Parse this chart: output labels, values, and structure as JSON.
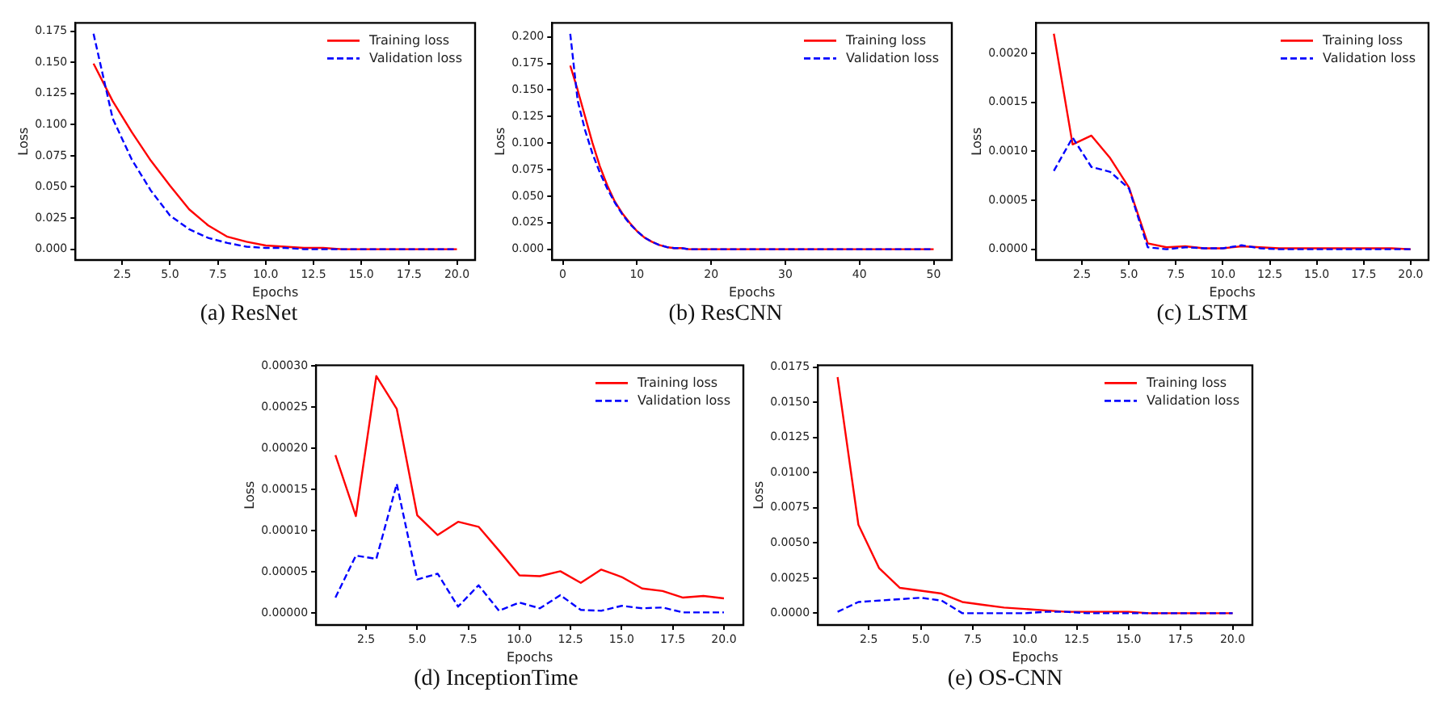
{
  "chart_data": [
    {
      "type": "line",
      "title": "(a) ResNet",
      "xlabel": "Epochs",
      "ylabel": "Loss",
      "x": [
        1,
        2,
        3,
        4,
        5,
        6,
        7,
        8,
        9,
        10,
        11,
        12,
        13,
        14,
        15,
        16,
        17,
        18,
        19,
        20
      ],
      "series": [
        {
          "name": "Training loss",
          "color": "#ff0000",
          "line_style": "solid",
          "values": [
            0.149,
            0.119,
            0.094,
            0.071,
            0.051,
            0.032,
            0.019,
            0.01,
            0.006,
            0.003,
            0.002,
            0.001,
            0.001,
            0,
            0,
            0,
            0,
            0,
            0,
            0
          ]
        },
        {
          "name": "Validation loss",
          "color": "#0000ff",
          "line_style": "dashed",
          "values": [
            0.173,
            0.105,
            0.072,
            0.047,
            0.027,
            0.016,
            0.009,
            0.005,
            0.002,
            0.001,
            0.001,
            0,
            0,
            0,
            0,
            0,
            0,
            0,
            0,
            0
          ]
        }
      ],
      "xlim": [
        0.05,
        20.95
      ],
      "xticks": [
        2.5,
        {
          "value": 5,
          "label": "5.0"
        },
        7.5,
        {
          "value": 10,
          "label": "10.0"
        },
        12.5,
        {
          "value": 15,
          "label": "15.0"
        },
        17.5,
        {
          "value": 20,
          "label": "20.0"
        }
      ],
      "ylim": [
        -0.0087,
        0.1817
      ],
      "yticks": [
        {
          "value": 0,
          "label": "0.000"
        },
        {
          "value": 0.025,
          "label": "0.025"
        },
        {
          "value": 0.05,
          "label": "0.050"
        },
        {
          "value": 0.075,
          "label": "0.075"
        },
        {
          "value": 0.1,
          "label": "0.100"
        },
        {
          "value": 0.125,
          "label": "0.125"
        },
        {
          "value": 0.15,
          "label": "0.150"
        },
        {
          "value": 0.175,
          "label": "0.175"
        }
      ],
      "grid": false,
      "legend": "top right",
      "marker": "none"
    },
    {
      "type": "line",
      "title": "(b) ResCNN",
      "xlabel": "Epochs",
      "ylabel": "Loss",
      "x": [
        1,
        2,
        3,
        4,
        5,
        6,
        7,
        8,
        9,
        10,
        11,
        12,
        13,
        14,
        15,
        16,
        17,
        18,
        19,
        20,
        21,
        22,
        23,
        24,
        25,
        26,
        27,
        28,
        29,
        30,
        31,
        32,
        33,
        34,
        35,
        36,
        37,
        38,
        39,
        40,
        41,
        42,
        43,
        44,
        45,
        46,
        47,
        48,
        49,
        50
      ],
      "series": [
        {
          "name": "Training loss",
          "color": "#ff0000",
          "line_style": "solid",
          "values": [
            0.173,
            0.15,
            0.125,
            0.1,
            0.078,
            0.06,
            0.045,
            0.034,
            0.025,
            0.017,
            0.011,
            0.007,
            0.004,
            0.002,
            0.001,
            0.001,
            0,
            0,
            0,
            0,
            0,
            0,
            0,
            0,
            0,
            0,
            0,
            0,
            0,
            0,
            0,
            0,
            0,
            0,
            0,
            0,
            0,
            0,
            0,
            0,
            0,
            0,
            0,
            0,
            0,
            0,
            0,
            0,
            0,
            0
          ]
        },
        {
          "name": "Validation loss",
          "color": "#0000ff",
          "line_style": "dashed",
          "values": [
            0.203,
            0.14,
            0.112,
            0.09,
            0.072,
            0.057,
            0.044,
            0.033,
            0.024,
            0.017,
            0.011,
            0.007,
            0.004,
            0.002,
            0.001,
            0.001,
            0,
            0,
            0,
            0,
            0,
            0,
            0,
            0,
            0,
            0,
            0,
            0,
            0,
            0,
            0,
            0,
            0,
            0,
            0,
            0,
            0,
            0,
            0,
            0,
            0,
            0,
            0,
            0,
            0,
            0,
            0,
            0,
            0,
            0
          ]
        }
      ],
      "xlim": [
        -1.45,
        52.45
      ],
      "xticks": [
        0,
        10,
        20,
        30,
        40,
        50
      ],
      "ylim": [
        -0.0102,
        0.2132
      ],
      "yticks": [
        {
          "value": 0,
          "label": "0.000"
        },
        {
          "value": 0.025,
          "label": "0.025"
        },
        {
          "value": 0.05,
          "label": "0.050"
        },
        {
          "value": 0.075,
          "label": "0.075"
        },
        {
          "value": 0.1,
          "label": "0.100"
        },
        {
          "value": 0.125,
          "label": "0.125"
        },
        {
          "value": 0.15,
          "label": "0.150"
        },
        {
          "value": 0.175,
          "label": "0.175"
        },
        {
          "value": 0.2,
          "label": "0.200"
        }
      ],
      "grid": false,
      "legend": "top right",
      "marker": "none"
    },
    {
      "type": "line",
      "title": "(c) LSTM",
      "xlabel": "Epochs",
      "ylabel": "Loss",
      "x": [
        1,
        2,
        3,
        4,
        5,
        6,
        7,
        8,
        9,
        10,
        11,
        12,
        13,
        14,
        15,
        16,
        17,
        18,
        19,
        20
      ],
      "series": [
        {
          "name": "Training loss",
          "color": "#ff0000",
          "line_style": "solid",
          "values": [
            0.0022,
            0.00107,
            0.00116,
            0.00093,
            0.00063,
            6e-05,
            2e-05,
            3e-05,
            1e-05,
            1e-05,
            3e-05,
            2e-05,
            1e-05,
            1e-05,
            1e-05,
            1e-05,
            1e-05,
            1e-05,
            1e-05,
            0
          ]
        },
        {
          "name": "Validation loss",
          "color": "#0000ff",
          "line_style": "dashed",
          "values": [
            0.0008,
            0.00114,
            0.00084,
            0.00079,
            0.00062,
            2e-05,
            0,
            2e-05,
            1e-05,
            1e-05,
            4e-05,
            1e-05,
            0,
            0,
            0,
            0,
            0,
            0,
            0,
            0
          ]
        }
      ],
      "xlim": [
        0.05,
        20.95
      ],
      "xticks": [
        2.5,
        {
          "value": 5,
          "label": "5.0"
        },
        7.5,
        {
          "value": 10,
          "label": "10.0"
        },
        12.5,
        {
          "value": 15,
          "label": "15.0"
        },
        17.5,
        {
          "value": 20,
          "label": "20.0"
        }
      ],
      "ylim": [
        -0.00011,
        0.00231
      ],
      "yticks": [
        {
          "value": 0,
          "label": "0.0000"
        },
        {
          "value": 0.0005,
          "label": "0.0005"
        },
        {
          "value": 0.001,
          "label": "0.0010"
        },
        {
          "value": 0.0015,
          "label": "0.0015"
        },
        {
          "value": 0.002,
          "label": "0.0020"
        }
      ],
      "grid": false,
      "legend": "top right",
      "marker": "none"
    },
    {
      "type": "line",
      "title": "(d) InceptionTime",
      "xlabel": "Epochs",
      "ylabel": "Loss",
      "x": [
        1,
        2,
        3,
        4,
        5,
        6,
        7,
        8,
        9,
        10,
        11,
        12,
        13,
        14,
        15,
        16,
        17,
        18,
        19,
        20
      ],
      "series": [
        {
          "name": "Training loss",
          "color": "#ff0000",
          "line_style": "solid",
          "values": [
            0.000192,
            0.000118,
            0.000288,
            0.000248,
            0.000119,
            9.5e-05,
            0.000111,
            0.000105,
            7.6e-05,
            4.6e-05,
            4.5e-05,
            5.1e-05,
            3.7e-05,
            5.3e-05,
            4.4e-05,
            3e-05,
            2.7e-05,
            1.9e-05,
            2.1e-05,
            1.8e-05
          ]
        },
        {
          "name": "Validation loss",
          "color": "#0000ff",
          "line_style": "dashed",
          "values": [
            1.9e-05,
            7e-05,
            6.6e-05,
            0.000157,
            4.1e-05,
            4.8e-05,
            8e-06,
            3.4e-05,
            3e-06,
            1.3e-05,
            6e-06,
            2.2e-05,
            4e-06,
            3e-06,
            9e-06,
            6e-06,
            7e-06,
            1e-06,
            1e-06,
            1e-06
          ]
        }
      ],
      "xlim": [
        0.05,
        20.95
      ],
      "xticks": [
        2.5,
        {
          "value": 5,
          "label": "5.0"
        },
        7.5,
        {
          "value": 10,
          "label": "10.0"
        },
        12.5,
        {
          "value": 15,
          "label": "15.0"
        },
        17.5,
        {
          "value": 20,
          "label": "20.0"
        }
      ],
      "ylim": [
        -1.43e-05,
        0.000301
      ],
      "yticks": [
        {
          "value": 0,
          "label": "0.00000"
        },
        {
          "value": 5e-05,
          "label": "0.00005"
        },
        {
          "value": 0.0001,
          "label": "0.00010"
        },
        {
          "value": 0.00015,
          "label": "0.00015"
        },
        {
          "value": 0.0002,
          "label": "0.00020"
        },
        {
          "value": 0.00025,
          "label": "0.00025"
        },
        {
          "value": 0.0003,
          "label": "0.00030"
        }
      ],
      "grid": false,
      "legend": "top right",
      "marker": "none"
    },
    {
      "type": "line",
      "title": "(e) OS-CNN",
      "xlabel": "Epochs",
      "ylabel": "Loss",
      "x": [
        1,
        2,
        3,
        4,
        5,
        6,
        7,
        8,
        9,
        10,
        11,
        12,
        13,
        14,
        15,
        16,
        17,
        18,
        19,
        20
      ],
      "series": [
        {
          "name": "Training loss",
          "color": "#ff0000",
          "line_style": "solid",
          "values": [
            0.0168,
            0.0063,
            0.0032,
            0.0018,
            0.0016,
            0.0014,
            0.0008,
            0.0006,
            0.0004,
            0.0003,
            0.0002,
            0.0001,
            0.0001,
            0.0001,
            0.0001,
            0,
            0,
            0,
            0,
            0
          ]
        },
        {
          "name": "Validation loss",
          "color": "#0000ff",
          "line_style": "dashed",
          "values": [
            0.0001,
            0.0008,
            0.0009,
            0.001,
            0.0011,
            0.0009,
            0,
            0,
            0,
            0,
            0.0001,
            0.0001,
            0,
            0,
            0,
            0,
            0,
            0,
            0,
            0
          ]
        }
      ],
      "xlim": [
        0.05,
        20.95
      ],
      "xticks": [
        2.5,
        {
          "value": 5,
          "label": "5.0"
        },
        7.5,
        {
          "value": 10,
          "label": "10.0"
        },
        12.5,
        {
          "value": 15,
          "label": "15.0"
        },
        17.5,
        {
          "value": 20,
          "label": "20.0"
        }
      ],
      "ylim": [
        -0.00084,
        0.01764
      ],
      "yticks": [
        {
          "value": 0,
          "label": "0.0000"
        },
        {
          "value": 0.0025,
          "label": "0.0025"
        },
        {
          "value": 0.005,
          "label": "0.0050"
        },
        {
          "value": 0.0075,
          "label": "0.0075"
        },
        {
          "value": 0.01,
          "label": "0.0100"
        },
        {
          "value": 0.0125,
          "label": "0.0125"
        },
        {
          "value": 0.015,
          "label": "0.0150"
        },
        {
          "value": 0.0175,
          "label": "0.0175"
        }
      ],
      "grid": false,
      "legend": "top right",
      "marker": "none"
    }
  ]
}
